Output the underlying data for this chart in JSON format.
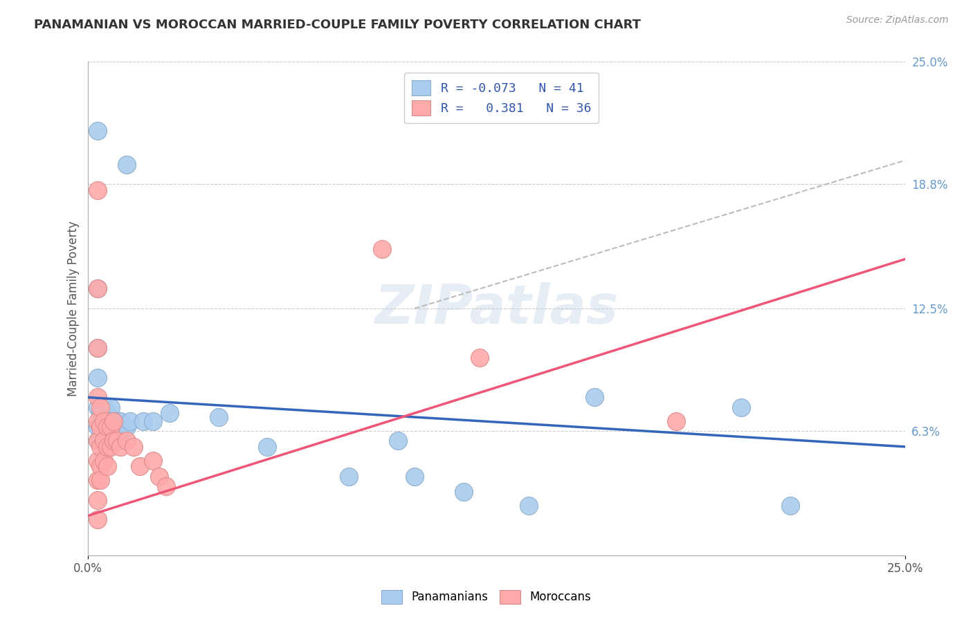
{
  "title": "PANAMANIAN VS MOROCCAN MARRIED-COUPLE FAMILY POVERTY CORRELATION CHART",
  "source": "Source: ZipAtlas.com",
  "ylabel": "Married-Couple Family Poverty",
  "xlim": [
    0.0,
    0.25
  ],
  "ylim": [
    0.0,
    0.25
  ],
  "xtick_positions": [
    0.0,
    0.25
  ],
  "xtick_labels": [
    "0.0%",
    "25.0%"
  ],
  "ytick_vals_right": [
    0.25,
    0.188,
    0.125,
    0.063
  ],
  "ytick_labels_right": [
    "25.0%",
    "18.8%",
    "12.5%",
    "6.3%"
  ],
  "legend_r_blue": "-0.073",
  "legend_n_blue": "41",
  "legend_r_pink": "0.381",
  "legend_n_pink": "36",
  "watermark": "ZIPatlas",
  "blue_scatter": [
    [
      0.003,
      0.215
    ],
    [
      0.012,
      0.198
    ],
    [
      0.003,
      0.135
    ],
    [
      0.003,
      0.105
    ],
    [
      0.003,
      0.09
    ],
    [
      0.003,
      0.075
    ],
    [
      0.003,
      0.065
    ],
    [
      0.003,
      0.058
    ],
    [
      0.004,
      0.072
    ],
    [
      0.004,
      0.065
    ],
    [
      0.004,
      0.058
    ],
    [
      0.005,
      0.075
    ],
    [
      0.005,
      0.065
    ],
    [
      0.005,
      0.058
    ],
    [
      0.006,
      0.072
    ],
    [
      0.006,
      0.065
    ],
    [
      0.007,
      0.075
    ],
    [
      0.007,
      0.068
    ],
    [
      0.007,
      0.058
    ],
    [
      0.008,
      0.065
    ],
    [
      0.008,
      0.058
    ],
    [
      0.009,
      0.068
    ],
    [
      0.009,
      0.058
    ],
    [
      0.01,
      0.068
    ],
    [
      0.01,
      0.062
    ],
    [
      0.011,
      0.065
    ],
    [
      0.012,
      0.065
    ],
    [
      0.013,
      0.068
    ],
    [
      0.017,
      0.068
    ],
    [
      0.02,
      0.068
    ],
    [
      0.025,
      0.072
    ],
    [
      0.04,
      0.07
    ],
    [
      0.055,
      0.055
    ],
    [
      0.08,
      0.04
    ],
    [
      0.095,
      0.058
    ],
    [
      0.1,
      0.04
    ],
    [
      0.115,
      0.032
    ],
    [
      0.135,
      0.025
    ],
    [
      0.155,
      0.08
    ],
    [
      0.2,
      0.075
    ],
    [
      0.215,
      0.025
    ]
  ],
  "pink_scatter": [
    [
      0.003,
      0.185
    ],
    [
      0.003,
      0.135
    ],
    [
      0.003,
      0.105
    ],
    [
      0.003,
      0.08
    ],
    [
      0.003,
      0.068
    ],
    [
      0.003,
      0.058
    ],
    [
      0.003,
      0.048
    ],
    [
      0.003,
      0.038
    ],
    [
      0.003,
      0.028
    ],
    [
      0.003,
      0.018
    ],
    [
      0.004,
      0.075
    ],
    [
      0.004,
      0.065
    ],
    [
      0.004,
      0.055
    ],
    [
      0.004,
      0.045
    ],
    [
      0.004,
      0.038
    ],
    [
      0.005,
      0.068
    ],
    [
      0.005,
      0.058
    ],
    [
      0.005,
      0.048
    ],
    [
      0.006,
      0.065
    ],
    [
      0.006,
      0.055
    ],
    [
      0.006,
      0.045
    ],
    [
      0.007,
      0.065
    ],
    [
      0.007,
      0.055
    ],
    [
      0.008,
      0.068
    ],
    [
      0.008,
      0.058
    ],
    [
      0.009,
      0.058
    ],
    [
      0.01,
      0.055
    ],
    [
      0.012,
      0.058
    ],
    [
      0.014,
      0.055
    ],
    [
      0.016,
      0.045
    ],
    [
      0.02,
      0.048
    ],
    [
      0.022,
      0.04
    ],
    [
      0.024,
      0.035
    ],
    [
      0.09,
      0.155
    ],
    [
      0.12,
      0.1
    ],
    [
      0.18,
      0.068
    ]
  ],
  "blue_line_x": [
    0.0,
    0.25
  ],
  "blue_line_y": [
    0.08,
    0.055
  ],
  "pink_line_x": [
    0.0,
    0.25
  ],
  "pink_line_y": [
    0.02,
    0.15
  ],
  "gray_dash_line_x": [
    0.1,
    0.25
  ],
  "gray_dash_line_y": [
    0.125,
    0.2
  ],
  "bg_color": "#ffffff",
  "grid_color": "#cccccc",
  "blue_scatter_color": "#aaccee",
  "pink_scatter_color": "#ffaaaa",
  "blue_line_color": "#3366bb",
  "pink_line_color": "#ee5577",
  "gray_dash_color": "#bbbbbb",
  "title_color": "#333333",
  "source_color": "#999999",
  "ylabel_color": "#555555",
  "right_tick_color": "#6699cc",
  "marker_size": 350
}
